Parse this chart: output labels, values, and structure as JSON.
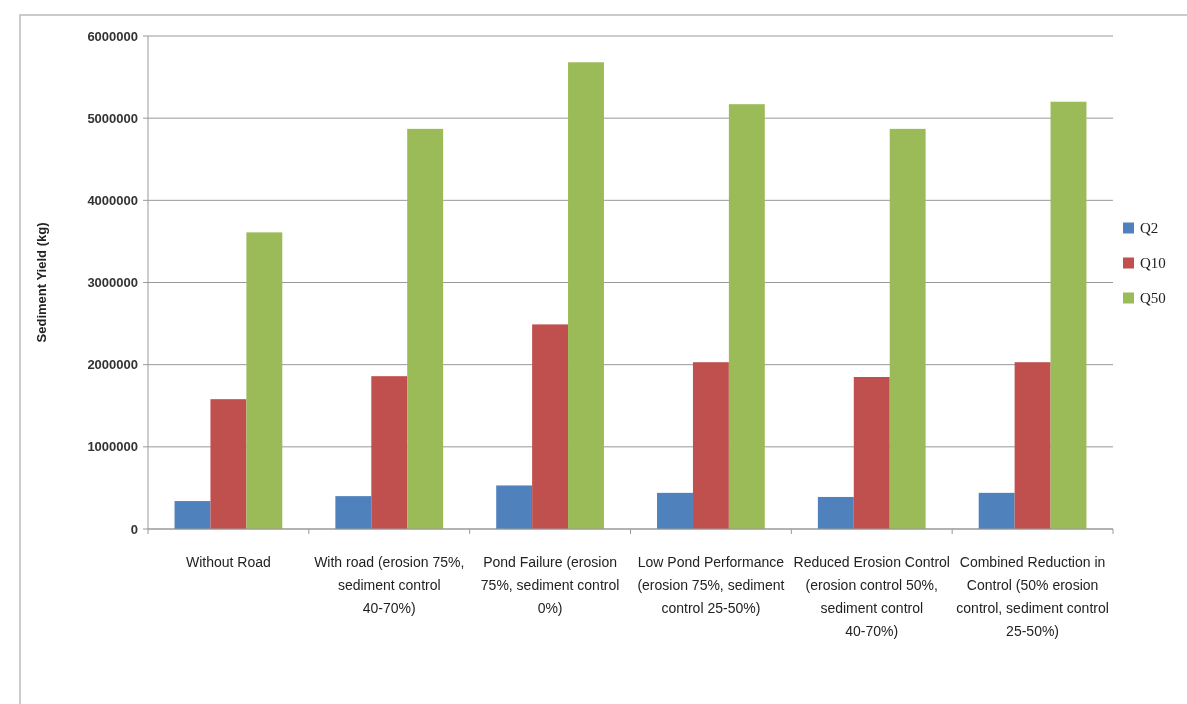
{
  "chart_data": {
    "type": "bar",
    "ylabel": "Sediment Yield (kg)",
    "categories": [
      "Without Road",
      "With road (erosion 75%, sediment control 40-70%)",
      "Pond Failure (erosion 75%, sediment control 0%)",
      "Low Pond Performance (erosion 75%, sediment control 25-50%)",
      "Reduced Erosion Control (erosion control 50%, sediment control 40-70%)",
      "Combined Reduction in Control (50% erosion control, sediment control 25-50%)"
    ],
    "series": [
      {
        "name": "Q2",
        "color": "#4f81bd",
        "values": [
          340000,
          400000,
          530000,
          440000,
          390000,
          440000
        ]
      },
      {
        "name": "Q10",
        "color": "#c0504d",
        "values": [
          1580000,
          1860000,
          2490000,
          2030000,
          1850000,
          2030000
        ]
      },
      {
        "name": "Q50",
        "color": "#9bbb59",
        "values": [
          3610000,
          4870000,
          5680000,
          5170000,
          4870000,
          5200000
        ]
      }
    ],
    "ylim": [
      0,
      6000000
    ],
    "yticks": [
      0,
      1000000,
      2000000,
      3000000,
      4000000,
      5000000,
      6000000
    ],
    "grid": "y",
    "legend": "right"
  }
}
